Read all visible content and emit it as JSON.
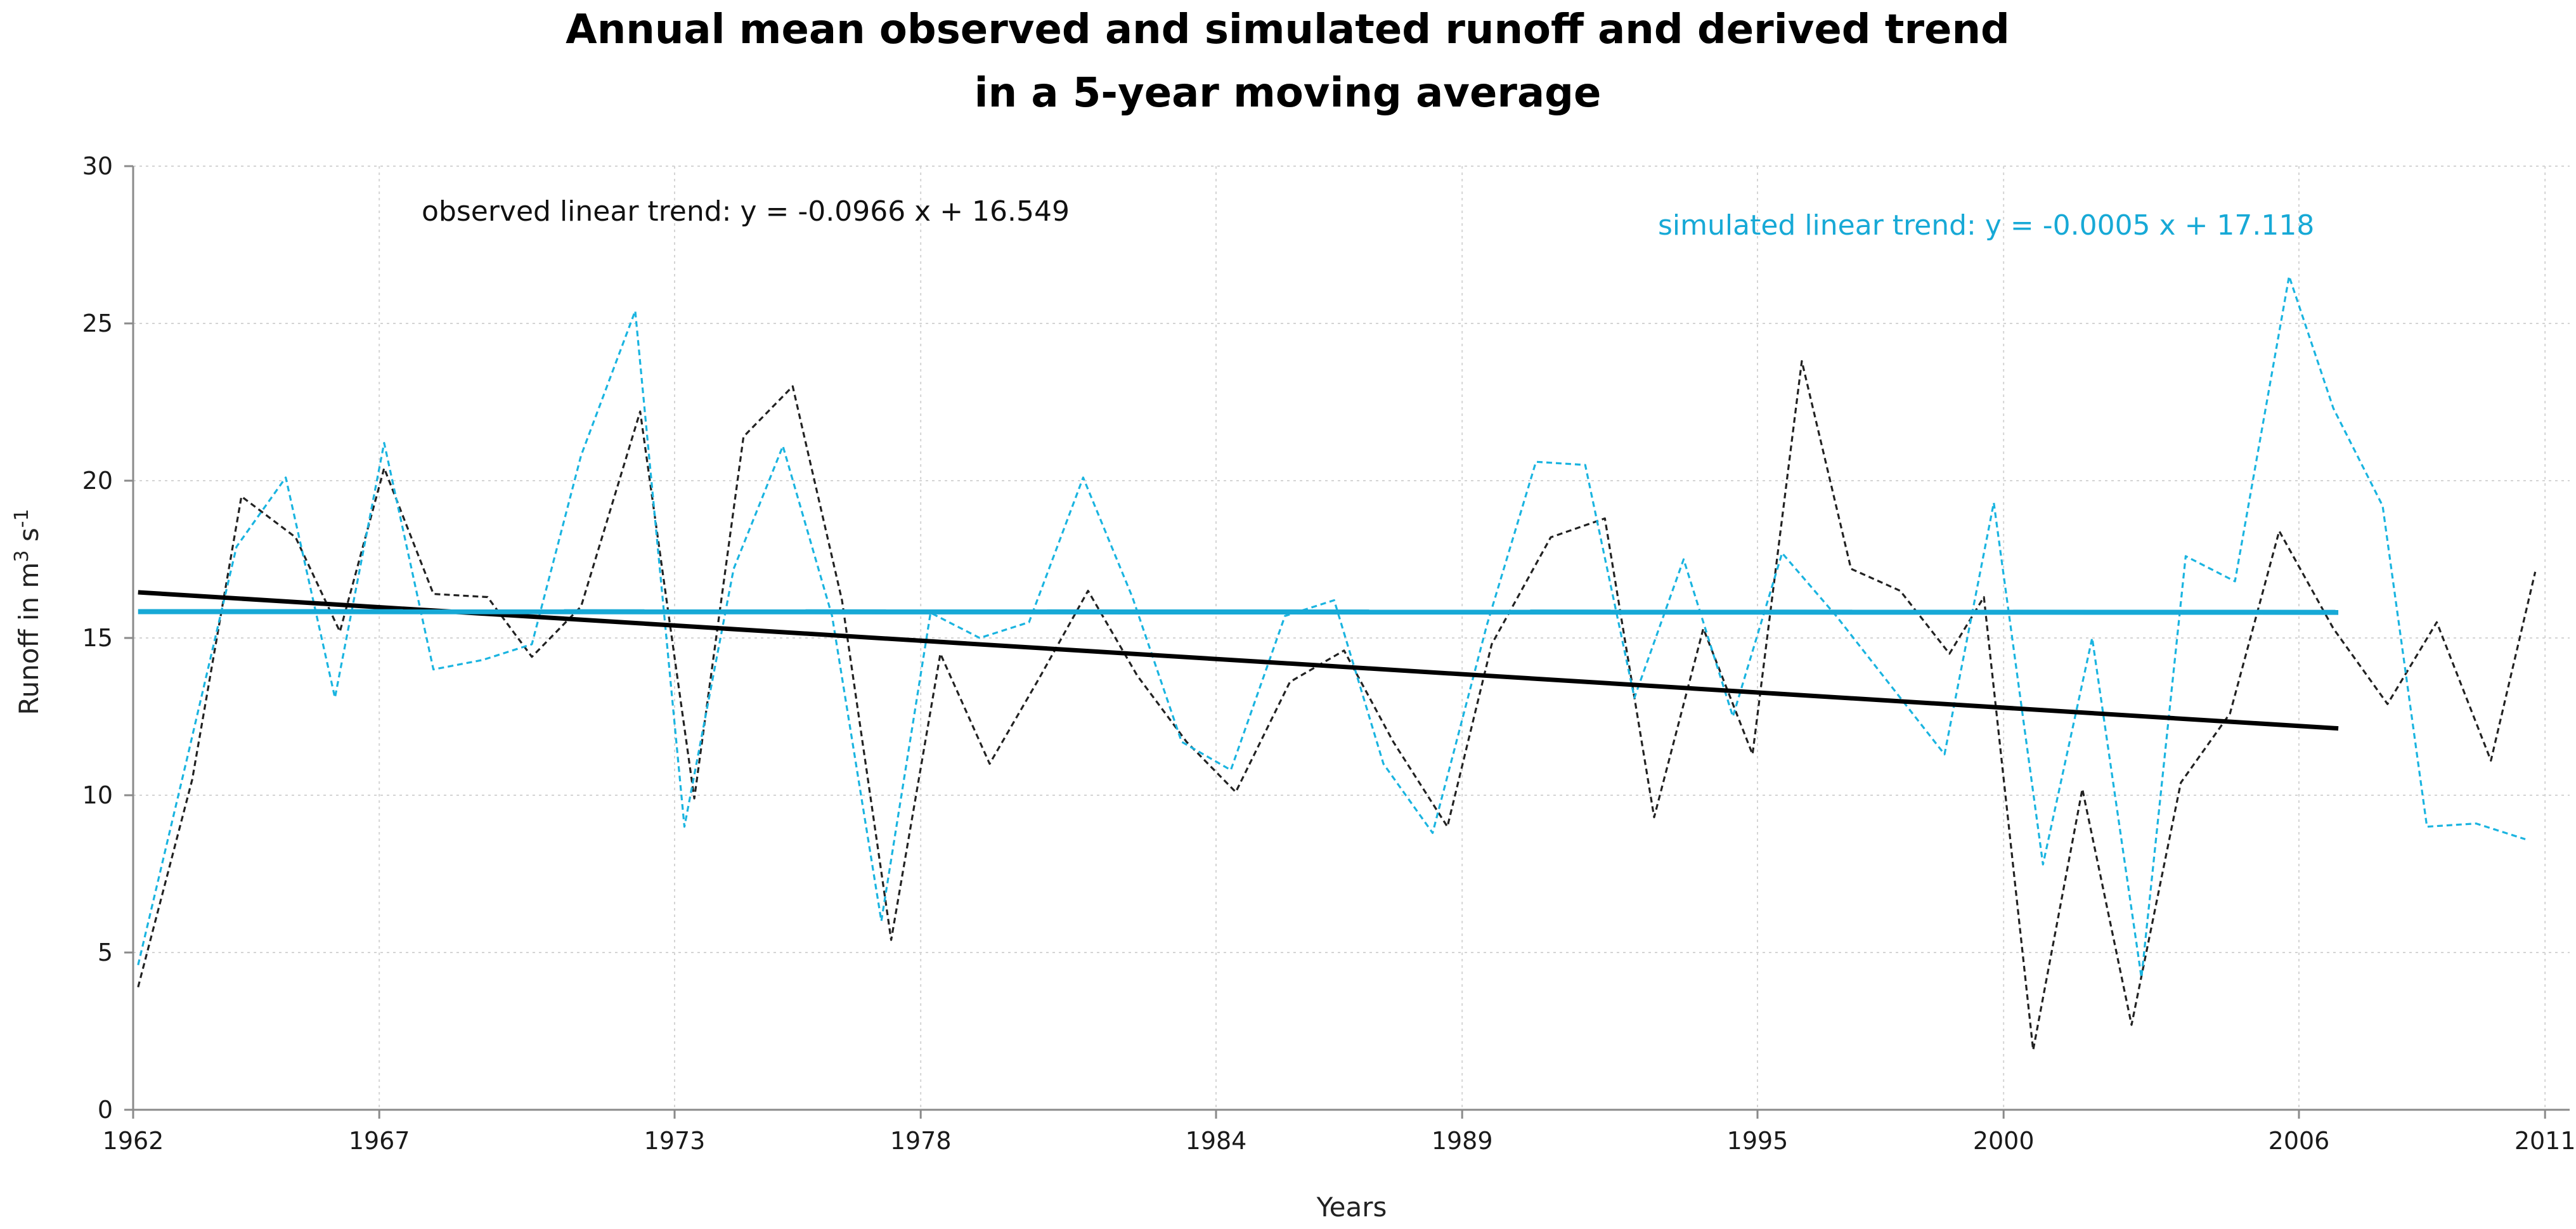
{
  "chart_data": {
    "type": "line",
    "title": [
      "Annual mean observed and simulated runoff and derived trend",
      "in a 5-year moving average"
    ],
    "xlabel": "Years",
    "ylabel": {
      "main": "Runoff in m",
      "exp1": "3",
      "mid": " s",
      "exp2": "-1"
    },
    "xlim": [
      1962,
      2011.5
    ],
    "ylim": [
      0,
      30
    ],
    "x_ticks": [
      "1962",
      "1967",
      "1973",
      "1978",
      "1984",
      "1989",
      "1995",
      "2000",
      "2006",
      "2011"
    ],
    "y_ticks": [
      "0",
      "5",
      "10",
      "15",
      "20",
      "25",
      "30"
    ],
    "grid": true,
    "colors": {
      "observed": "#222222",
      "simulated": "#1ab4e0",
      "trend_simulated": "#17a9d6",
      "trend_observed": "#000000",
      "grid": "#d4d4d4",
      "axis": "#8a8a8a"
    },
    "series": [
      {
        "name": "observed",
        "style": "dashed",
        "x": [
          1962.1,
          1963.2,
          1964.2,
          1965.3,
          1966.2,
          1967.1,
          1968.1,
          1969.2,
          1970.1,
          1971.1,
          1972.3,
          1973.4,
          1974.4,
          1975.4,
          1976.4,
          1977.4,
          1978.4,
          1979.4,
          1980.4,
          1981.4,
          1982.4,
          1983.4,
          1984.4,
          1985.5,
          1986.6,
          1987.6,
          1988.7,
          1989.6,
          1990.8,
          1991.9,
          1992.9,
          1993.9,
          1994.9,
          1995.9,
          1996.9,
          1997.9,
          1998.9,
          1999.6,
          2000.6,
          2001.6,
          2002.6,
          2003.6,
          2004.6,
          2005.6,
          2006.7,
          2007.8,
          2008.8,
          2009.9,
          2010.8
        ],
        "values": [
          3.9,
          10.5,
          19.5,
          18.2,
          15.2,
          20.4,
          16.4,
          16.3,
          14.4,
          16.0,
          22.2,
          9.9,
          21.4,
          23.0,
          16.2,
          5.4,
          14.5,
          11.0,
          13.7,
          16.5,
          13.8,
          11.7,
          10.1,
          13.6,
          14.6,
          11.7,
          9.0,
          14.8,
          18.2,
          18.8,
          9.3,
          15.3,
          11.3,
          23.8,
          17.2,
          16.5,
          14.5,
          16.3,
          1.9,
          10.2,
          2.7,
          10.4,
          12.6,
          18.4,
          15.3,
          12.9,
          15.5,
          11.1,
          17.1
        ]
      },
      {
        "name": "simulated",
        "style": "dashed",
        "x": [
          1962.1,
          1963.1,
          1964.1,
          1965.1,
          1966.1,
          1967.1,
          1968.1,
          1969.1,
          1970.1,
          1971.1,
          1972.2,
          1973.2,
          1974.2,
          1975.2,
          1976.2,
          1977.2,
          1978.2,
          1979.2,
          1980.2,
          1981.3,
          1982.3,
          1983.3,
          1984.3,
          1985.4,
          1986.4,
          1987.4,
          1988.4,
          1989.5,
          1990.5,
          1991.5,
          1992.5,
          1993.5,
          1994.5,
          1995.5,
          1996.6,
          1997.7,
          1998.8,
          1999.8,
          2000.8,
          2001.8,
          2002.8,
          2003.7,
          2004.7,
          2005.8,
          2006.7,
          2007.7,
          2008.6,
          2009.6,
          2010.6
        ],
        "values": [
          4.6,
          11.2,
          17.9,
          20.1,
          13.1,
          21.2,
          14.0,
          14.3,
          14.8,
          20.8,
          25.4,
          9.0,
          17.2,
          21.1,
          15.7,
          6.0,
          15.8,
          15.0,
          15.5,
          20.1,
          16.3,
          11.7,
          10.8,
          15.7,
          16.2,
          11.0,
          8.8,
          15.4,
          20.6,
          20.5,
          13.1,
          17.5,
          12.5,
          17.7,
          15.7,
          13.5,
          11.3,
          19.3,
          7.8,
          15.0,
          4.2,
          17.6,
          16.8,
          26.5,
          22.3,
          19.2,
          9.0,
          9.1,
          8.6
        ]
      }
    ],
    "trendlines": [
      {
        "name": "observed linear trend",
        "slope": -0.0966,
        "intercept": 16.549,
        "x_start": 1962,
        "x_end": 2006.8
      },
      {
        "name": "simulated linear trend",
        "slope": -0.0005,
        "intercept": 17.118,
        "x_start": 1962,
        "x_end": 2006.8
      }
    ],
    "annotations": {
      "observed_trend": "observed linear trend:  y = -0.0966 x + 16.549",
      "simulated_trend": "simulated linear trend:  y = -0.0005 x + 17.118"
    }
  }
}
